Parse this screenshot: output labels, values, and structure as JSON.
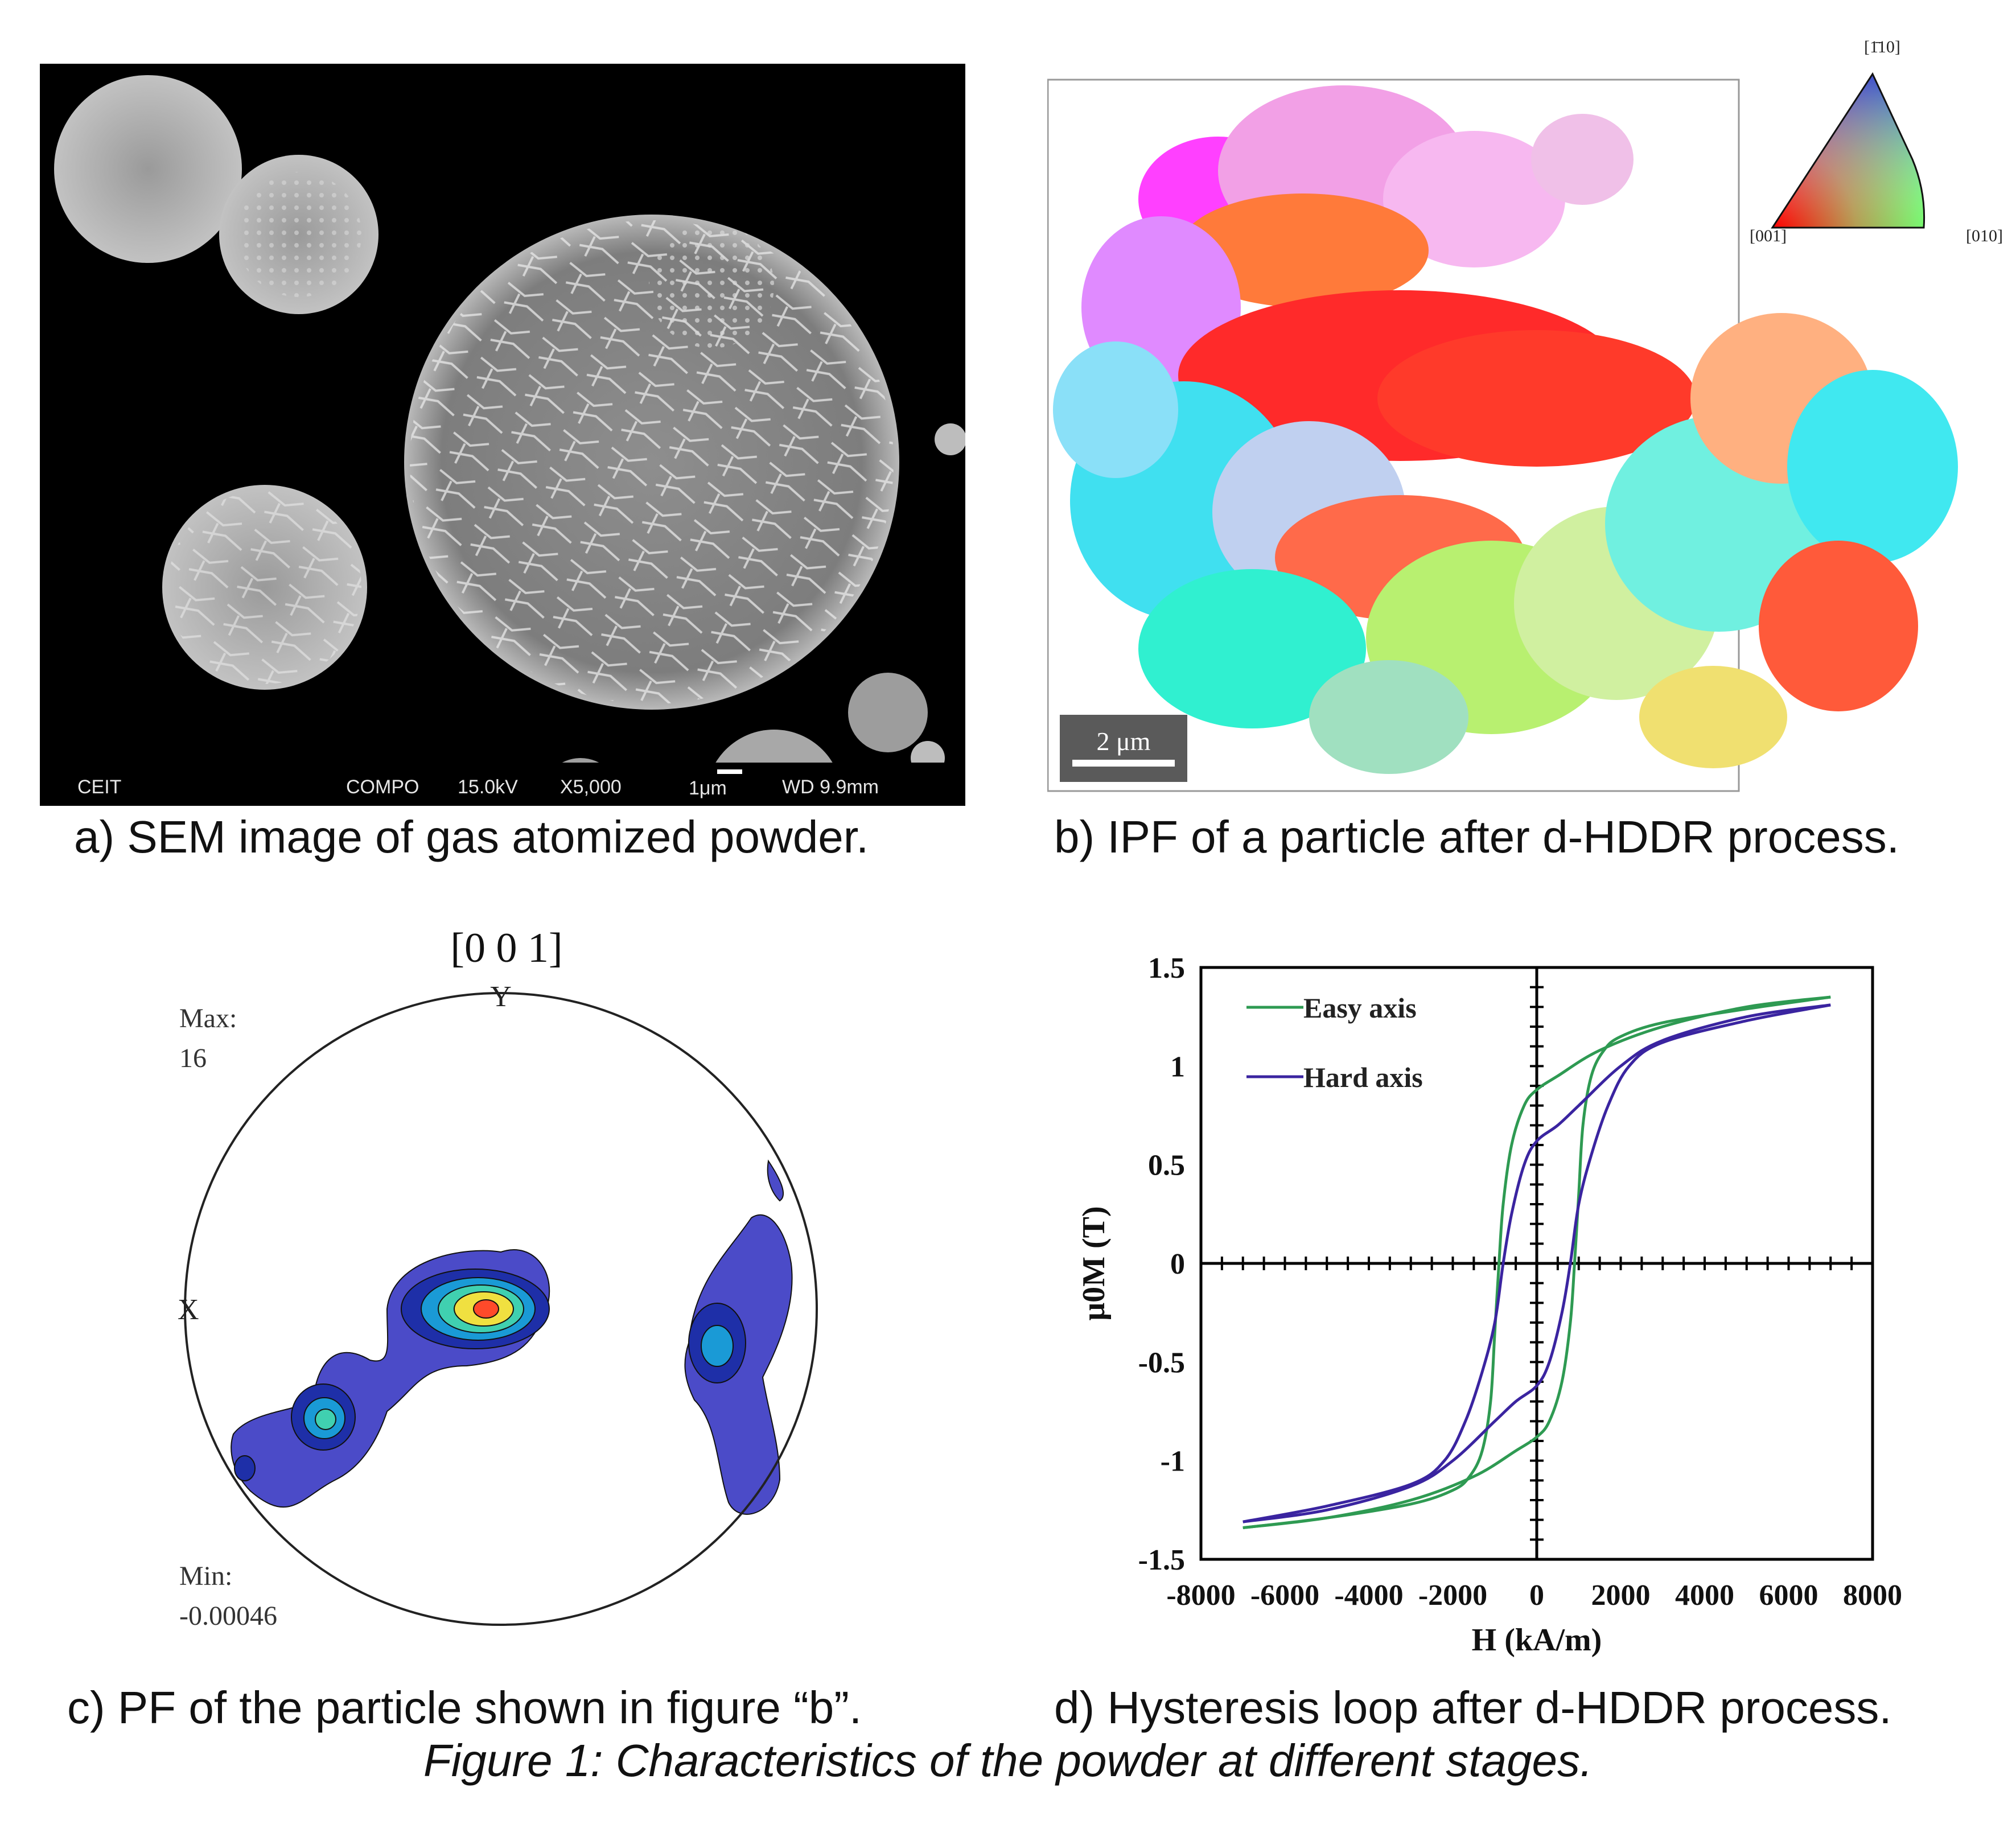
{
  "figure": {
    "caption": "Figure 1: Characteristics of the powder at different stages.",
    "panel_a": {
      "caption": "a) SEM image of gas atomized powder.",
      "databar": {
        "brand": "CEIT",
        "mode": "COMPO",
        "voltage": "15.0kV",
        "magnification": "X5,000",
        "scale": "1μm",
        "working_distance": "WD 9.9mm"
      }
    },
    "panel_b": {
      "caption": "b) IPF of a particle after d-HDDR process.",
      "scale_bar": "2 μm",
      "key": {
        "top": "[1̄10]",
        "left": "[001]",
        "right": "[010]"
      }
    },
    "panel_c": {
      "caption": "c) PF of the particle shown in figure “b”.",
      "title": "[0 0 1]",
      "axis_y": "Y",
      "axis_x": "X",
      "max_label": "Max:",
      "max_value": "16",
      "min_label": "Min:",
      "min_value": "-0.00046"
    },
    "panel_d": {
      "caption": "d) Hysteresis loop after d-HDDR process.",
      "colors": {
        "easy": "#2e9a52",
        "hard": "#3a24a0"
      }
    }
  },
  "chart_data": {
    "type": "line",
    "xlabel": "H (kA/m)",
    "ylabel": "μ0M (T)",
    "xlim": [
      -8000,
      8000
    ],
    "ylim": [
      -1.5,
      1.5
    ],
    "xticks": [
      "-8000",
      "-6000",
      "-4000",
      "-2000",
      "0",
      "2000",
      "4000",
      "6000",
      "8000"
    ],
    "yticks": [
      "1.5",
      "1",
      "0.5",
      "0",
      "-0.5",
      "-1",
      "-1.5"
    ],
    "legend_position": "top-left",
    "series": [
      {
        "name": "Easy axis",
        "branches": [
          {
            "x": [
              7000,
              5000,
              3000,
              1500,
              500,
              0,
              -300,
              -600,
              -800,
              -900,
              -1000,
              -1100,
              -1300,
              -1600,
              -2000,
              -3000,
              -5000,
              -7000
            ],
            "y": [
              1.35,
              1.3,
              1.2,
              1.08,
              0.95,
              0.88,
              0.8,
              0.6,
              0.3,
              0.0,
              -0.35,
              -0.7,
              -0.95,
              -1.08,
              -1.15,
              -1.22,
              -1.29,
              -1.34
            ]
          },
          {
            "x": [
              -7000,
              -5000,
              -3000,
              -1500,
              -500,
              0,
              300,
              600,
              800,
              900,
              1000,
              1100,
              1300,
              1600,
              2000,
              3000,
              5000,
              7000
            ],
            "y": [
              -1.34,
              -1.29,
              -1.2,
              -1.08,
              -0.95,
              -0.88,
              -0.8,
              -0.6,
              -0.3,
              0.0,
              0.35,
              0.7,
              0.95,
              1.08,
              1.15,
              1.22,
              1.29,
              1.35
            ]
          }
        ]
      },
      {
        "name": "Hard axis",
        "branches": [
          {
            "x": [
              7000,
              5000,
              3000,
              2000,
              1000,
              500,
              0,
              -300,
              -600,
              -800,
              -1000,
              -1300,
              -1700,
              -2200,
              -3000,
              -5000,
              -7000
            ],
            "y": [
              1.31,
              1.25,
              1.13,
              1.0,
              0.8,
              0.7,
              0.62,
              0.5,
              0.25,
              0.0,
              -0.3,
              -0.55,
              -0.8,
              -1.0,
              -1.12,
              -1.23,
              -1.31
            ]
          },
          {
            "x": [
              -7000,
              -5000,
              -3000,
              -2000,
              -1000,
              -500,
              0,
              300,
              600,
              800,
              1000,
              1300,
              1700,
              2200,
              3000,
              5000,
              7000
            ],
            "y": [
              -1.31,
              -1.25,
              -1.13,
              -1.0,
              -0.8,
              -0.7,
              -0.62,
              -0.5,
              -0.25,
              0.0,
              0.3,
              0.55,
              0.8,
              1.0,
              1.12,
              1.23,
              1.31
            ]
          }
        ]
      }
    ]
  }
}
